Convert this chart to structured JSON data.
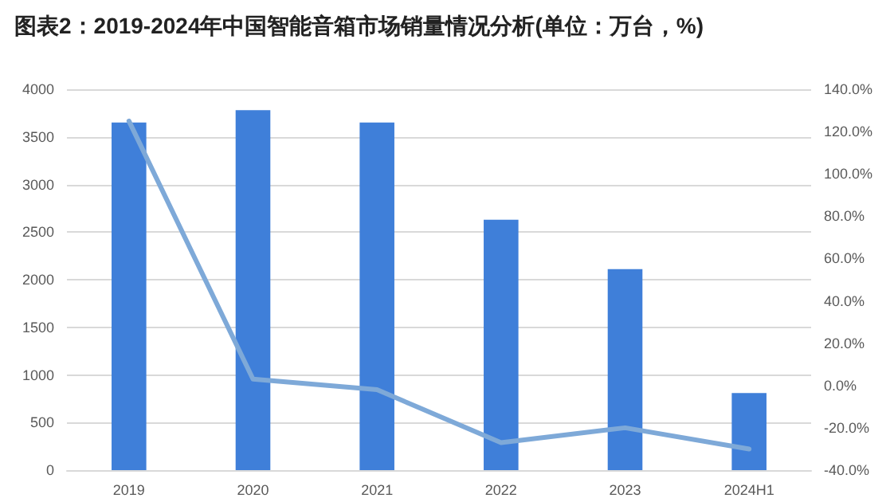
{
  "chart_data": {
    "type": "bar",
    "title": "图表2：2019-2024年中国智能音箱市场销量情况分析(单位：万台，%)",
    "categories": [
      "2019",
      "2020",
      "2021",
      "2022",
      "2023",
      "2024H1"
    ],
    "series": [
      {
        "color": "#3f7fd9",
        "values": [
          3650,
          3780,
          3650,
          2630,
          2110,
          810
        ]
      },
      {
        "type": "line",
        "axis": "y2",
        "color": "#7ea9d8",
        "values": [
          125,
          3,
          -2,
          -27,
          -20,
          -30
        ]
      }
    ],
    "ylim": [
      0,
      4000
    ],
    "yticks": [
      0,
      500,
      1000,
      1500,
      2000,
      2500,
      3000,
      3500,
      4000
    ],
    "y2lim": [
      -40,
      140
    ],
    "y2ticks": [
      {
        "value": -40,
        "label": "-40.0%"
      },
      {
        "value": -20,
        "label": "-20.0%"
      },
      {
        "value": 0,
        "label": "0.0%"
      },
      {
        "value": 20,
        "label": "20.0%"
      },
      {
        "value": 40,
        "label": "40.0%"
      },
      {
        "value": 60,
        "label": "60.0%"
      },
      {
        "value": 80,
        "label": "80.0%"
      },
      {
        "value": 100,
        "label": "100.0%"
      },
      {
        "value": 120,
        "label": "120.0%"
      },
      {
        "value": 140,
        "label": "140.0%"
      }
    ],
    "grid": "y",
    "marker": "none",
    "line_style": "solid"
  }
}
